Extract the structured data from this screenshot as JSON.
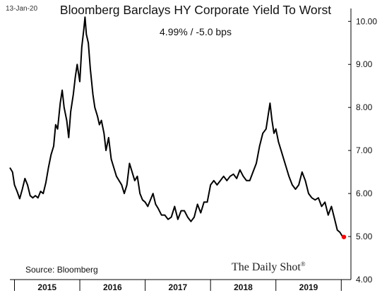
{
  "header": {
    "date": "13-Jan-20",
    "title": "Bloomberg Barclays HY Corporate Yield To Worst",
    "subtitle": "4.99%  /  -5.0 bps"
  },
  "footer": {
    "source": "Source: Bloomberg",
    "brand": "The Daily Shot",
    "brand_mark": "®"
  },
  "colors": {
    "line": "#000000",
    "last_point": "#ff0000",
    "axis": "#000000"
  },
  "chart_data": {
    "type": "line",
    "title": "Bloomberg Barclays HY Corporate Yield To Worst",
    "xlabel": "",
    "ylabel": "",
    "ylim": [
      4.0,
      10.3
    ],
    "y_ticks": [
      "4.00",
      "5.00",
      "6.00",
      "7.00",
      "8.00",
      "9.00",
      "10.00"
    ],
    "y_tick_values": [
      4.0,
      5.0,
      6.0,
      7.0,
      8.0,
      9.0,
      10.0
    ],
    "x_categories": [
      "2015",
      "2016",
      "2017",
      "2018",
      "2019"
    ],
    "xlim": [
      2014.93,
      2020.04
    ],
    "grid": false,
    "series": [
      {
        "values": [
          [
            2014.93,
            6.6
          ],
          [
            2014.97,
            6.5
          ],
          [
            2015.0,
            6.2
          ],
          [
            2015.04,
            6.05
          ],
          [
            2015.08,
            5.88
          ],
          [
            2015.12,
            6.1
          ],
          [
            2015.16,
            6.35
          ],
          [
            2015.2,
            6.2
          ],
          [
            2015.24,
            5.95
          ],
          [
            2015.28,
            5.9
          ],
          [
            2015.32,
            5.95
          ],
          [
            2015.36,
            5.9
          ],
          [
            2015.4,
            6.05
          ],
          [
            2015.44,
            6.0
          ],
          [
            2015.48,
            6.25
          ],
          [
            2015.52,
            6.6
          ],
          [
            2015.56,
            6.9
          ],
          [
            2015.6,
            7.1
          ],
          [
            2015.63,
            7.6
          ],
          [
            2015.66,
            7.5
          ],
          [
            2015.7,
            8.1
          ],
          [
            2015.73,
            8.4
          ],
          [
            2015.76,
            8.0
          ],
          [
            2015.8,
            7.7
          ],
          [
            2015.83,
            7.3
          ],
          [
            2015.86,
            7.9
          ],
          [
            2015.9,
            8.3
          ],
          [
            2015.93,
            8.7
          ],
          [
            2015.96,
            9.0
          ],
          [
            2016.0,
            8.6
          ],
          [
            2016.03,
            9.4
          ],
          [
            2016.06,
            9.8
          ],
          [
            2016.08,
            10.1
          ],
          [
            2016.1,
            9.7
          ],
          [
            2016.13,
            9.5
          ],
          [
            2016.16,
            8.9
          ],
          [
            2016.2,
            8.3
          ],
          [
            2016.23,
            8.0
          ],
          [
            2016.27,
            7.8
          ],
          [
            2016.3,
            7.6
          ],
          [
            2016.33,
            7.7
          ],
          [
            2016.37,
            7.4
          ],
          [
            2016.4,
            7.0
          ],
          [
            2016.44,
            7.3
          ],
          [
            2016.48,
            6.8
          ],
          [
            2016.52,
            6.6
          ],
          [
            2016.56,
            6.4
          ],
          [
            2016.6,
            6.3
          ],
          [
            2016.64,
            6.2
          ],
          [
            2016.68,
            6.0
          ],
          [
            2016.72,
            6.2
          ],
          [
            2016.76,
            6.7
          ],
          [
            2016.8,
            6.5
          ],
          [
            2016.84,
            6.3
          ],
          [
            2016.88,
            6.4
          ],
          [
            2016.92,
            6.0
          ],
          [
            2016.96,
            5.85
          ],
          [
            2017.0,
            5.8
          ],
          [
            2017.04,
            5.7
          ],
          [
            2017.08,
            5.85
          ],
          [
            2017.12,
            6.0
          ],
          [
            2017.16,
            5.75
          ],
          [
            2017.2,
            5.65
          ],
          [
            2017.25,
            5.5
          ],
          [
            2017.3,
            5.5
          ],
          [
            2017.35,
            5.4
          ],
          [
            2017.4,
            5.45
          ],
          [
            2017.45,
            5.7
          ],
          [
            2017.5,
            5.4
          ],
          [
            2017.55,
            5.6
          ],
          [
            2017.6,
            5.6
          ],
          [
            2017.65,
            5.45
          ],
          [
            2017.7,
            5.35
          ],
          [
            2017.75,
            5.45
          ],
          [
            2017.8,
            5.75
          ],
          [
            2017.85,
            5.55
          ],
          [
            2017.9,
            5.8
          ],
          [
            2017.95,
            5.8
          ],
          [
            2018.0,
            6.2
          ],
          [
            2018.05,
            6.3
          ],
          [
            2018.1,
            6.2
          ],
          [
            2018.15,
            6.3
          ],
          [
            2018.2,
            6.4
          ],
          [
            2018.25,
            6.3
          ],
          [
            2018.3,
            6.4
          ],
          [
            2018.35,
            6.45
          ],
          [
            2018.4,
            6.35
          ],
          [
            2018.45,
            6.55
          ],
          [
            2018.5,
            6.4
          ],
          [
            2018.55,
            6.3
          ],
          [
            2018.6,
            6.3
          ],
          [
            2018.65,
            6.5
          ],
          [
            2018.7,
            6.7
          ],
          [
            2018.75,
            7.1
          ],
          [
            2018.8,
            7.4
          ],
          [
            2018.85,
            7.5
          ],
          [
            2018.88,
            7.8
          ],
          [
            2018.91,
            8.1
          ],
          [
            2018.94,
            7.7
          ],
          [
            2018.97,
            7.4
          ],
          [
            2019.0,
            7.5
          ],
          [
            2019.04,
            7.2
          ],
          [
            2019.08,
            7.0
          ],
          [
            2019.12,
            6.8
          ],
          [
            2019.16,
            6.6
          ],
          [
            2019.2,
            6.4
          ],
          [
            2019.25,
            6.2
          ],
          [
            2019.3,
            6.1
          ],
          [
            2019.35,
            6.2
          ],
          [
            2019.4,
            6.5
          ],
          [
            2019.45,
            6.3
          ],
          [
            2019.5,
            6.0
          ],
          [
            2019.55,
            5.9
          ],
          [
            2019.6,
            5.85
          ],
          [
            2019.65,
            5.9
          ],
          [
            2019.7,
            5.7
          ],
          [
            2019.75,
            5.8
          ],
          [
            2019.8,
            5.5
          ],
          [
            2019.85,
            5.7
          ],
          [
            2019.9,
            5.4
          ],
          [
            2019.94,
            5.15
          ],
          [
            2019.98,
            5.1
          ],
          [
            2020.02,
            5.0
          ],
          [
            2020.04,
            4.99
          ]
        ]
      }
    ],
    "last_point": [
      2020.04,
      4.99
    ]
  }
}
